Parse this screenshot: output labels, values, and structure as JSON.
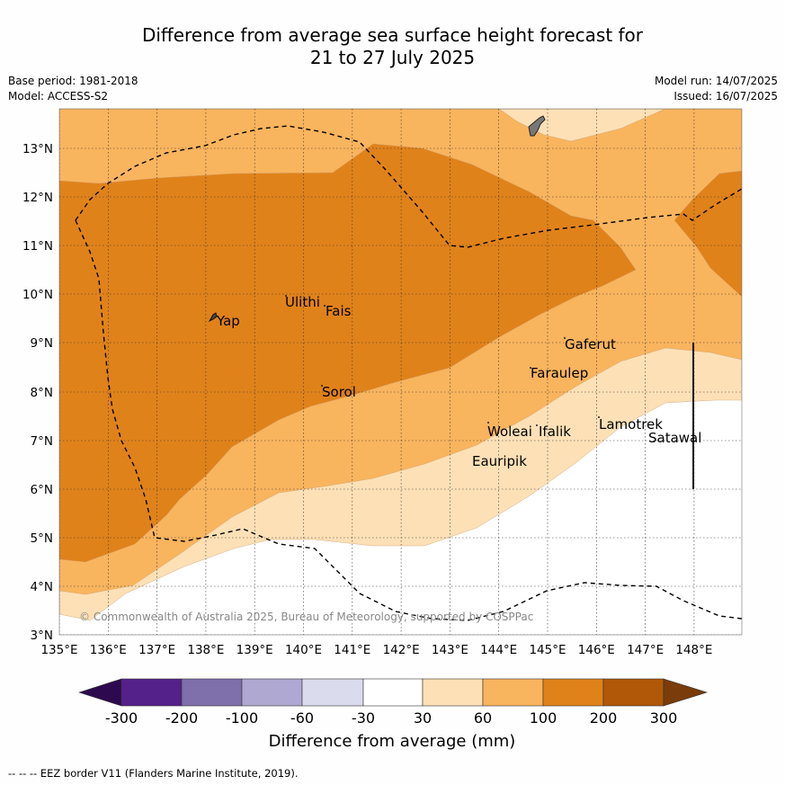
{
  "title_line1": "Difference from average sea surface height forecast for",
  "title_line2": "21 to 27 July 2025",
  "meta_left": {
    "base_period": "Base period: 1981-2018",
    "model": "Model: ACCESS-S2"
  },
  "meta_right": {
    "model_run": "Model run: 14/07/2025",
    "issued": "Issued: 16/07/2025"
  },
  "x_ticks": [
    "135°E",
    "136°E",
    "137°E",
    "138°E",
    "139°E",
    "140°E",
    "141°E",
    "142°E",
    "143°E",
    "144°E",
    "145°E",
    "146°E",
    "147°E",
    "148°E"
  ],
  "y_ticks": [
    "3°N",
    "4°N",
    "5°N",
    "6°N",
    "7°N",
    "8°N",
    "9°N",
    "10°N",
    "11°N",
    "12°N",
    "13°N"
  ],
  "places": {
    "yap": "Yap",
    "ulithi": "Ulithi",
    "fais": "Fais",
    "sorol": "Sorol",
    "gaferut": "Gaferut",
    "faraulep": "Faraulep",
    "woleai": "Woleai",
    "ifalik": "Ifalik",
    "eauripik": "Eauripik",
    "lamotrek": "Lamotrek",
    "satawal": "Satawal"
  },
  "copyright": "© Commonwealth of Australia 2025, Bureau of Meteorology, supported by COSPPac",
  "colorbar": {
    "labels": [
      "-300",
      "-200",
      "-100",
      "-60",
      "-30",
      "30",
      "60",
      "100",
      "200",
      "300"
    ],
    "colors": [
      "#54218a",
      "#7f6faa",
      "#afa8d0",
      "#dadbec",
      "#ffffff",
      "#fde0b6",
      "#f9b45e",
      "#e0821a",
      "#b05808"
    ],
    "under_color": "#2d0a4f",
    "over_color": "#7a3c0a",
    "title": "Difference from average (mm)"
  },
  "map_colors": {
    "band_30_60": "#fde0b6",
    "band_60_100": "#f9b45e",
    "band_100_200": "#e0821a"
  },
  "footnote": "--  --  -- EEZ border V11 (Flanders Marine Institute, 2019)."
}
